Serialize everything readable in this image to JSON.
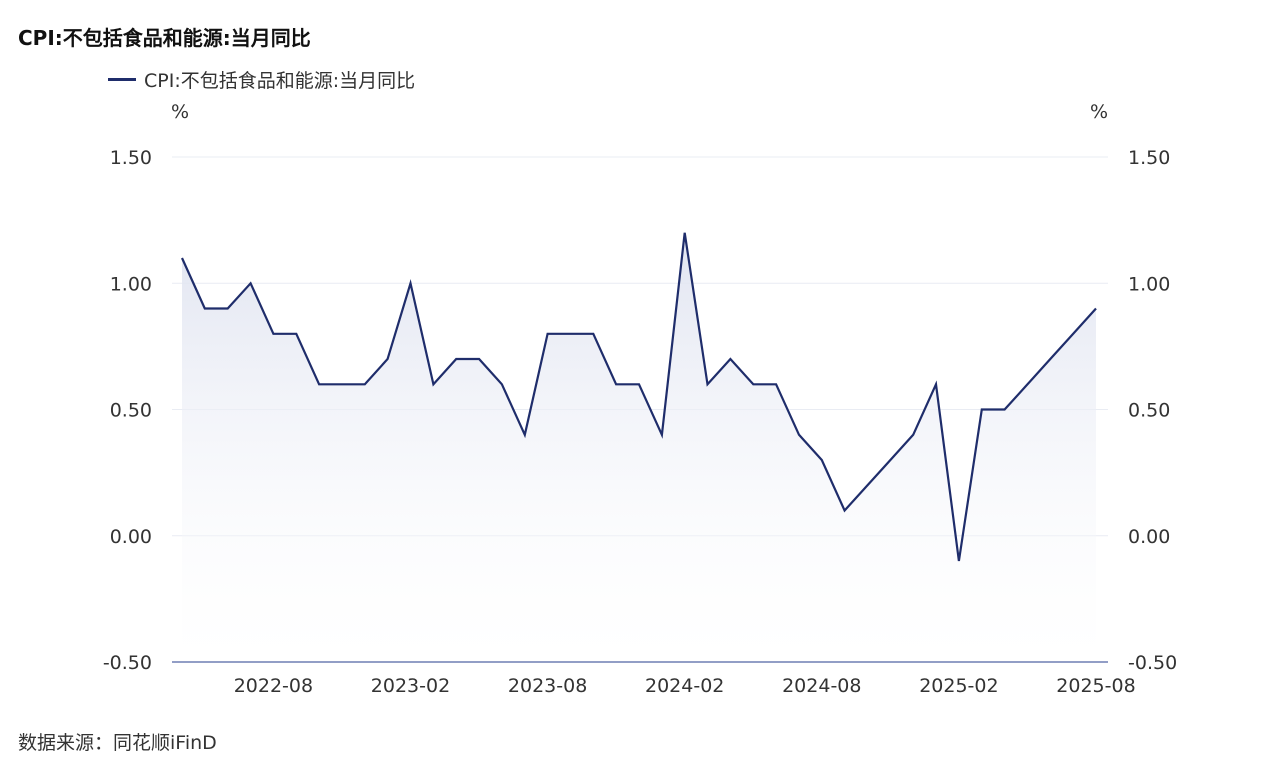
{
  "header": {
    "title": "CPI:不包括食品和能源:当月同比"
  },
  "legend": {
    "label": "CPI:不包括食品和能源:当月同比"
  },
  "footer": {
    "source": "数据来源：同花顺iFinD"
  },
  "colors": {
    "line": "#1f2d6b",
    "area_top": "#dfe3f0",
    "grid": "#e9ecf3",
    "axis": "#6f7fb3"
  },
  "chart_data": {
    "type": "area",
    "title": "CPI:不包括食品和能源:当月同比",
    "y_unit_left": "%",
    "y_unit_right": "%",
    "ylim": [
      -0.5,
      1.5
    ],
    "yticks": [
      "1.50",
      "1.00",
      "0.50",
      "0.00",
      "-0.50"
    ],
    "ytick_values": [
      1.5,
      1.0,
      0.5,
      0.0,
      -0.5
    ],
    "xticks": [
      "2022-08",
      "2023-02",
      "2023-08",
      "2024-02",
      "2024-08",
      "2025-02",
      "2025-08"
    ],
    "xtick_dates": [
      "2022-08",
      "2023-02",
      "2023-08",
      "2024-02",
      "2024-08",
      "2025-02",
      "2025-08"
    ],
    "grid": true,
    "legend_position": "top-left",
    "series": [
      {
        "name": "CPI:不包括食品和能源:当月同比",
        "x": [
          "2022-04",
          "2022-05",
          "2022-06",
          "2022-07",
          "2022-08",
          "2022-09",
          "2022-10",
          "2022-11",
          "2022-12",
          "2023-01",
          "2023-02",
          "2023-03",
          "2023-04",
          "2023-05",
          "2023-06",
          "2023-07",
          "2023-08",
          "2023-09",
          "2023-10",
          "2023-11",
          "2023-12",
          "2024-01",
          "2024-02",
          "2024-03",
          "2024-04",
          "2024-05",
          "2024-06",
          "2024-07",
          "2024-08",
          "2024-09",
          "2024-10",
          "2024-11",
          "2024-12",
          "2025-01",
          "2025-02",
          "2025-03",
          "2025-04",
          "2025-05",
          "2025-06",
          "2025-07",
          "2025-08"
        ],
        "values": [
          1.1,
          0.9,
          0.9,
          1.0,
          0.8,
          0.8,
          0.6,
          0.6,
          0.6,
          0.7,
          1.0,
          0.6,
          0.7,
          0.7,
          0.6,
          0.4,
          0.8,
          0.8,
          0.8,
          0.6,
          0.6,
          0.4,
          1.2,
          0.6,
          0.7,
          0.6,
          0.6,
          0.4,
          0.3,
          0.1,
          0.2,
          0.3,
          0.4,
          0.6,
          -0.1,
          0.5,
          0.5,
          0.6,
          0.7,
          0.8,
          0.9
        ]
      }
    ]
  }
}
